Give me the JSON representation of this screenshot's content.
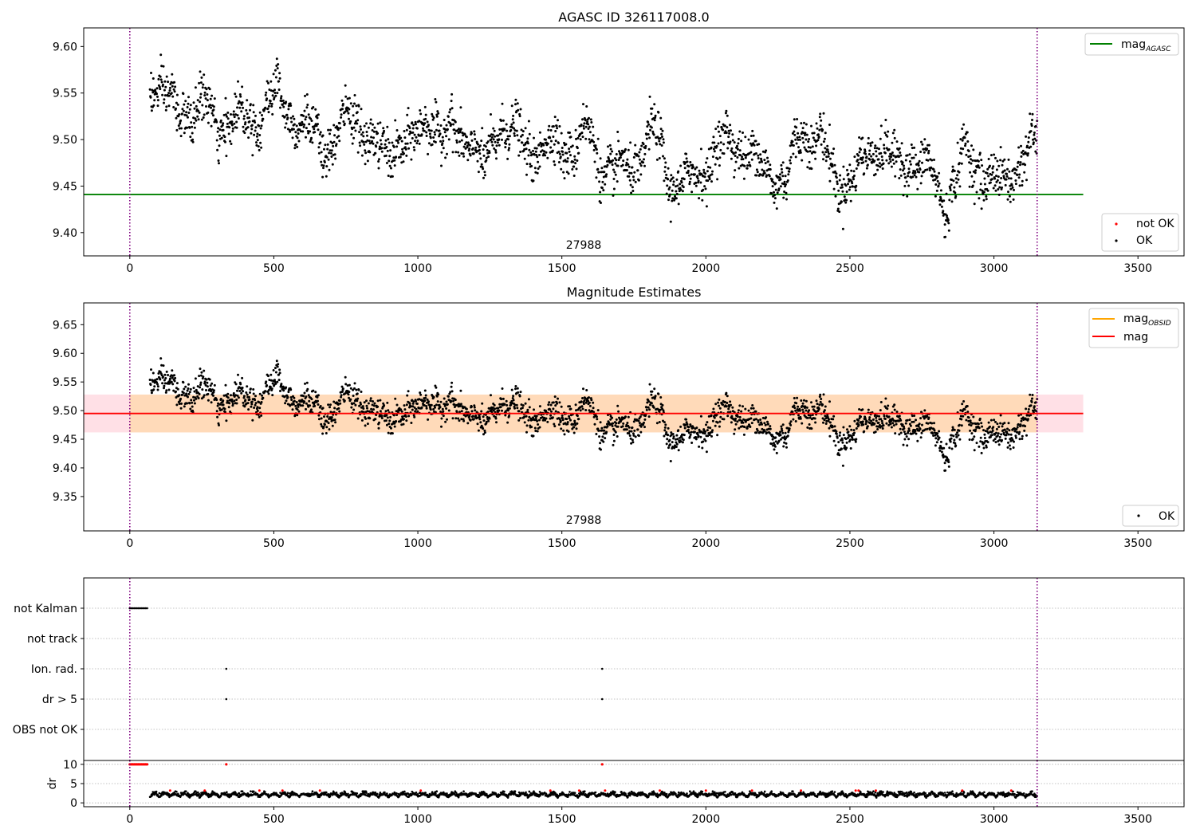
{
  "colors": {
    "agasc_line": "#008000",
    "obsid_line": "#ffa500",
    "mag_line": "#ff0000",
    "band_inner": "#ffdab9",
    "band_outer": "#ffe0e6",
    "ok_points": "#000000",
    "not_ok_points": "#ff0000",
    "boundary": "#800080",
    "grid": "#b0b0b0"
  },
  "chart_data": [
    {
      "type": "scatter",
      "title": "AGASC ID 326117008.0",
      "annotation": "27988",
      "xlim": [
        -160,
        3660
      ],
      "ylim": [
        9.375,
        9.62
      ],
      "xticks": [
        "0",
        "500",
        "1000",
        "1500",
        "2000",
        "2500",
        "3000",
        "3500"
      ],
      "yticks": [
        "9.40",
        "9.45",
        "9.50",
        "9.55",
        "9.60"
      ],
      "x_range": [
        70,
        3150
      ],
      "mag_agasc": 9.441,
      "line_x_end": 3310,
      "obs_boundaries": [
        0,
        3150
      ],
      "legend_upper": [
        {
          "label": "mag",
          "sub": "AGASC"
        }
      ],
      "legend_lower": [
        {
          "label": "not OK"
        },
        {
          "label": "OK"
        }
      ],
      "series_ok_profile": [
        [
          70,
          9.565
        ],
        [
          120,
          9.555
        ],
        [
          160,
          9.525
        ],
        [
          200,
          9.53
        ],
        [
          260,
          9.54
        ],
        [
          300,
          9.51
        ],
        [
          360,
          9.525
        ],
        [
          420,
          9.52
        ],
        [
          460,
          9.53
        ],
        [
          500,
          9.55
        ],
        [
          560,
          9.53
        ],
        [
          620,
          9.51
        ],
        [
          680,
          9.49
        ],
        [
          720,
          9.505
        ],
        [
          780,
          9.53
        ],
        [
          830,
          9.5
        ],
        [
          880,
          9.48
        ],
        [
          930,
          9.5
        ],
        [
          980,
          9.49
        ],
        [
          1040,
          9.53
        ],
        [
          1080,
          9.5
        ],
        [
          1130,
          9.51
        ],
        [
          1180,
          9.5
        ],
        [
          1230,
          9.465
        ],
        [
          1280,
          9.52
        ],
        [
          1330,
          9.505
        ],
        [
          1380,
          9.49
        ],
        [
          1430,
          9.49
        ],
        [
          1480,
          9.495
        ],
        [
          1540,
          9.49
        ],
        [
          1590,
          9.51
        ],
        [
          1640,
          9.47
        ],
        [
          1700,
          9.465
        ],
        [
          1760,
          9.475
        ],
        [
          1820,
          9.51
        ],
        [
          1880,
          9.455
        ],
        [
          1920,
          9.45
        ],
        [
          1980,
          9.465
        ],
        [
          2040,
          9.49
        ],
        [
          2100,
          9.5
        ],
        [
          2160,
          9.48
        ],
        [
          2220,
          9.465
        ],
        [
          2280,
          9.455
        ],
        [
          2330,
          9.51
        ],
        [
          2400,
          9.5
        ],
        [
          2450,
          9.455
        ],
        [
          2520,
          9.46
        ],
        [
          2600,
          9.5
        ],
        [
          2660,
          9.47
        ],
        [
          2720,
          9.48
        ],
        [
          2780,
          9.465
        ],
        [
          2830,
          9.43
        ],
        [
          2900,
          9.485
        ],
        [
          2960,
          9.465
        ],
        [
          3030,
          9.45
        ],
        [
          3080,
          9.475
        ],
        [
          3150,
          9.495
        ]
      ],
      "scatter_sigma": 0.016
    },
    {
      "type": "scatter",
      "title": "Magnitude Estimates",
      "annotation": "27988",
      "xlim": [
        -160,
        3660
      ],
      "ylim": [
        9.29,
        9.688
      ],
      "xticks": [
        "0",
        "500",
        "1000",
        "1500",
        "2000",
        "2500",
        "3000",
        "3500"
      ],
      "yticks": [
        "9.35",
        "9.40",
        "9.45",
        "9.50",
        "9.55",
        "9.60",
        "9.65"
      ],
      "mag": 9.495,
      "mag_band": [
        9.462,
        9.528
      ],
      "line_x_end": 3310,
      "obs_boundaries": [
        0,
        3150
      ],
      "legend_upper": [
        {
          "label": "mag",
          "sub": "OBSID"
        },
        {
          "label": "mag"
        }
      ],
      "legend_lower": [
        {
          "label": "OK"
        }
      ]
    },
    {
      "type": "scatter",
      "flag_rows": [
        "not Kalman",
        "not track",
        "Ion. rad.",
        "dr > 5",
        "OBS not OK"
      ],
      "flag_points": {
        "not Kalman": [
          0,
          5,
          10,
          15,
          20,
          25,
          30,
          35,
          40,
          45,
          50,
          55,
          60
        ],
        "not track": [],
        "Ion. rad.": [
          335,
          1640
        ],
        "dr > 5": [
          335,
          1640
        ],
        "OBS not OK": []
      },
      "dr_ylabel": "dr",
      "dr_yticks": [
        "0",
        "5",
        "10"
      ],
      "dr_ylim": [
        -1,
        11
      ],
      "dr_clip": 10,
      "dr_clipped_x": [
        0,
        5,
        10,
        15,
        20,
        25,
        30,
        35,
        40,
        45,
        50,
        55,
        60,
        335,
        1640
      ],
      "dr_red_x": [
        140,
        260,
        450,
        530,
        660,
        1010,
        1460,
        1560,
        1650,
        1840,
        2000,
        2160,
        2330,
        2520,
        2530,
        2590,
        2890,
        3060
      ],
      "xlim": [
        -160,
        3660
      ],
      "xticks": [
        "0",
        "500",
        "1000",
        "1500",
        "2000",
        "2500",
        "3000",
        "3500"
      ],
      "obs_boundaries": [
        0,
        3150
      ]
    }
  ]
}
